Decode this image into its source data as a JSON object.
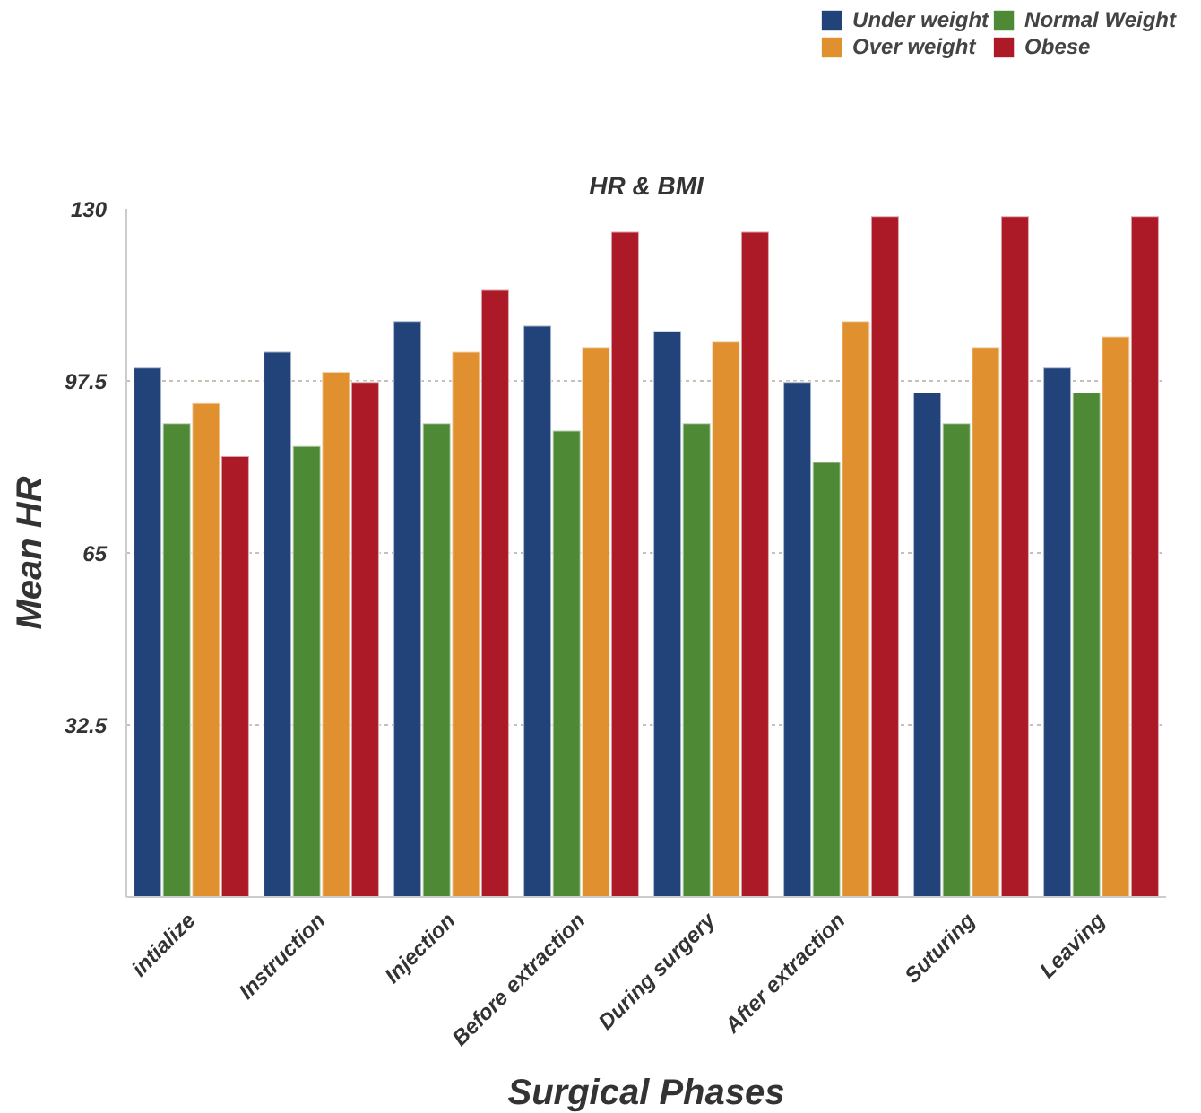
{
  "chart_data": {
    "type": "bar",
    "title": "HR & BMI",
    "xlabel": "Surgical Phases",
    "ylabel": "Mean HR",
    "categories": [
      "intialize",
      "Instruction",
      "Injection",
      "Before extraction",
      "During surgery",
      "After extraction",
      "Suturing",
      "Leaving"
    ],
    "series": [
      {
        "name": "Under weight",
        "color": "#22427a",
        "values": [
          100.0,
          103.0,
          108.8,
          107.9,
          106.9,
          97.3,
          95.3,
          100.0
        ]
      },
      {
        "name": "Normal Weight",
        "color": "#4e8a35",
        "values": [
          89.5,
          85.2,
          89.5,
          88.1,
          89.5,
          82.2,
          89.5,
          95.3
        ]
      },
      {
        "name": "Over weight",
        "color": "#e0902f",
        "values": [
          93.3,
          99.2,
          103.0,
          103.9,
          104.9,
          108.8,
          103.9,
          105.9
        ]
      },
      {
        "name": "Obese",
        "color": "#ab1a26",
        "values": [
          83.3,
          97.3,
          114.7,
          125.7,
          125.7,
          128.6,
          128.6,
          128.6
        ]
      }
    ],
    "ylim": [
      0,
      130
    ],
    "yticks": [
      32.5,
      65,
      97.5,
      130
    ],
    "grid": "y",
    "legend": "top right"
  }
}
